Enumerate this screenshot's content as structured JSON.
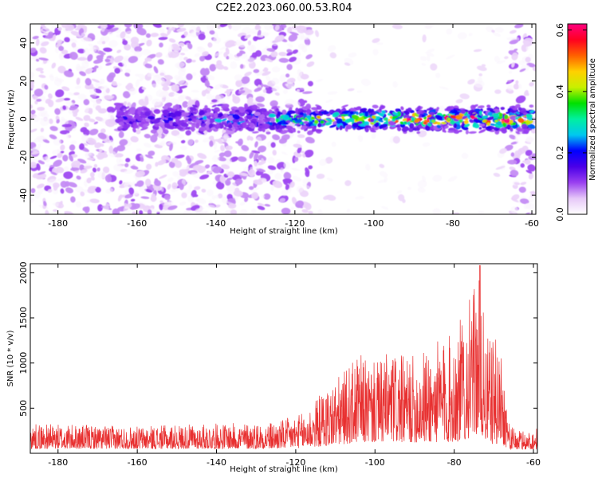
{
  "title": "C2E2.2023.060.00.53.R04",
  "colors": {
    "snr_line": "#e83030",
    "colorbar_stops": [
      "#ffffff",
      "#e6c8f8",
      "#9a40f0",
      "#4a00e8",
      "#0000ff",
      "#00c8f0",
      "#00f0a0",
      "#00e000",
      "#c8f000",
      "#ffd000",
      "#ff6000",
      "#ff0020",
      "#ff0080"
    ]
  },
  "chart_data": [
    {
      "type": "heatmap",
      "title": "C2E2.2023.060.00.53.R04",
      "xlabel": "Height of straight line (km)",
      "ylabel": "Frequency (Hz)",
      "xlim": [
        -187,
        -59
      ],
      "ylim": [
        -50,
        50
      ],
      "x_ticks": [
        "-180",
        "-160",
        "-140",
        "-120",
        "-100",
        "-80",
        "-60"
      ],
      "x_tick_values": [
        -180,
        -160,
        -140,
        -120,
        -100,
        -80,
        -60
      ],
      "y_ticks": [
        "-40",
        "-20",
        "0",
        "20",
        "40"
      ],
      "y_tick_values": [
        -40,
        -20,
        0,
        20,
        40
      ],
      "colorbar": {
        "label": "Normalized spectral amplitude",
        "range": [
          0.0,
          0.62
        ],
        "ticks": [
          "0.0",
          "0.2",
          "0.4",
          "0.6"
        ],
        "tick_values": [
          0.0,
          0.2,
          0.4,
          0.6
        ]
      },
      "description_of_field": {
        "band_center_hz": 0,
        "band_halfwidth_hz": 7,
        "band_extent_km": [
          -165,
          -60
        ],
        "peak_amplitude": 0.6,
        "peak_height_km": -75,
        "noise_edge_km": -116,
        "right_noise_edge_km": -66
      }
    },
    {
      "type": "line",
      "xlabel": "Height of straight line (km)",
      "ylabel": "SNR (10 * v/v)",
      "xlim": [
        -187,
        -59
      ],
      "ylim": [
        0,
        2100
      ],
      "x_ticks": [
        "-180",
        "-160",
        "-140",
        "-120",
        "-100",
        "-80",
        "-60"
      ],
      "x_tick_values": [
        -180,
        -160,
        -140,
        -120,
        -100,
        -80,
        -60
      ],
      "y_ticks": [
        "500",
        "1000",
        "1500",
        "2000"
      ],
      "y_tick_values": [
        500,
        1000,
        1500,
        2000
      ],
      "envelope": {
        "x": [
          -187,
          -160,
          -140,
          -125,
          -118,
          -112,
          -108,
          -104,
          -100,
          -96,
          -92,
          -88,
          -84,
          -80,
          -77,
          -75,
          -74,
          -73,
          -72,
          -70,
          -68,
          -66,
          -64,
          -62,
          -59
        ],
        "y_max": [
          330,
          300,
          330,
          350,
          450,
          750,
          900,
          1100,
          1000,
          1150,
          1050,
          1150,
          1250,
          1350,
          1650,
          1800,
          2080,
          1700,
          1300,
          1300,
          1200,
          300,
          260,
          250,
          280
        ],
        "y_min": [
          50,
          50,
          50,
          50,
          60,
          80,
          100,
          120,
          120,
          120,
          120,
          120,
          120,
          120,
          150,
          200,
          220,
          180,
          120,
          100,
          100,
          40,
          40,
          40,
          40
        ]
      },
      "peak": {
        "x": -73.5,
        "y": 2080
      }
    }
  ]
}
